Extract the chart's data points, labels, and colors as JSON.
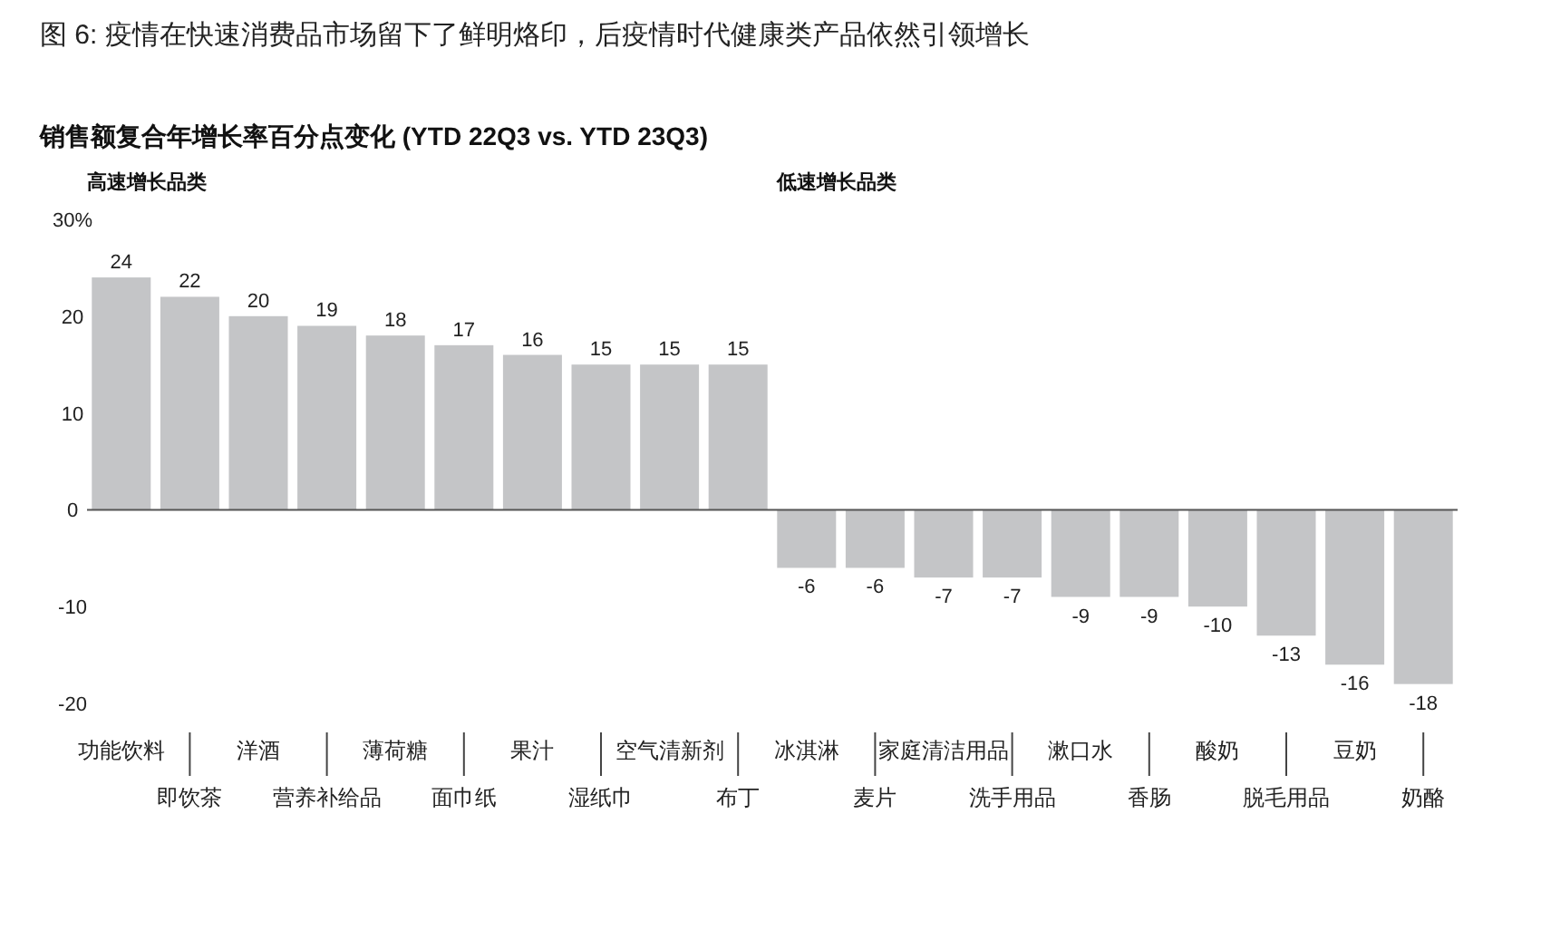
{
  "chart_data": {
    "type": "bar",
    "title": "图 6: 疫情在快速消费品市场留下了鲜明烙印，后疫情时代健康类产品依然引领增长",
    "subtitle": "销售额复合年增长率百分点变化 (YTD 22Q3 vs. YTD 23Q3)",
    "categories": [
      "功能饮料",
      "即饮茶",
      "洋酒",
      "营养补给品",
      "薄荷糖",
      "面巾纸",
      "果汁",
      "湿纸巾",
      "空气清新剂",
      "布丁",
      "冰淇淋",
      "麦片",
      "家庭清洁用品",
      "洗手用品",
      "漱口水",
      "香肠",
      "酸奶",
      "脱毛用品",
      "豆奶",
      "奶酪"
    ],
    "values": [
      24,
      22,
      20,
      19,
      18,
      17,
      16,
      15,
      15,
      15,
      -6,
      -6,
      -7,
      -7,
      -9,
      -9,
      -10,
      -13,
      -16,
      -18
    ],
    "color": "#c4c5c7",
    "data_labels": true,
    "ylim": [
      -20,
      30
    ],
    "yticks": [
      {
        "value": 30,
        "label": "30%"
      },
      20,
      10,
      0,
      -10,
      -20
    ],
    "annotations": [
      "高速增长品类",
      "低速增长品类"
    ]
  }
}
